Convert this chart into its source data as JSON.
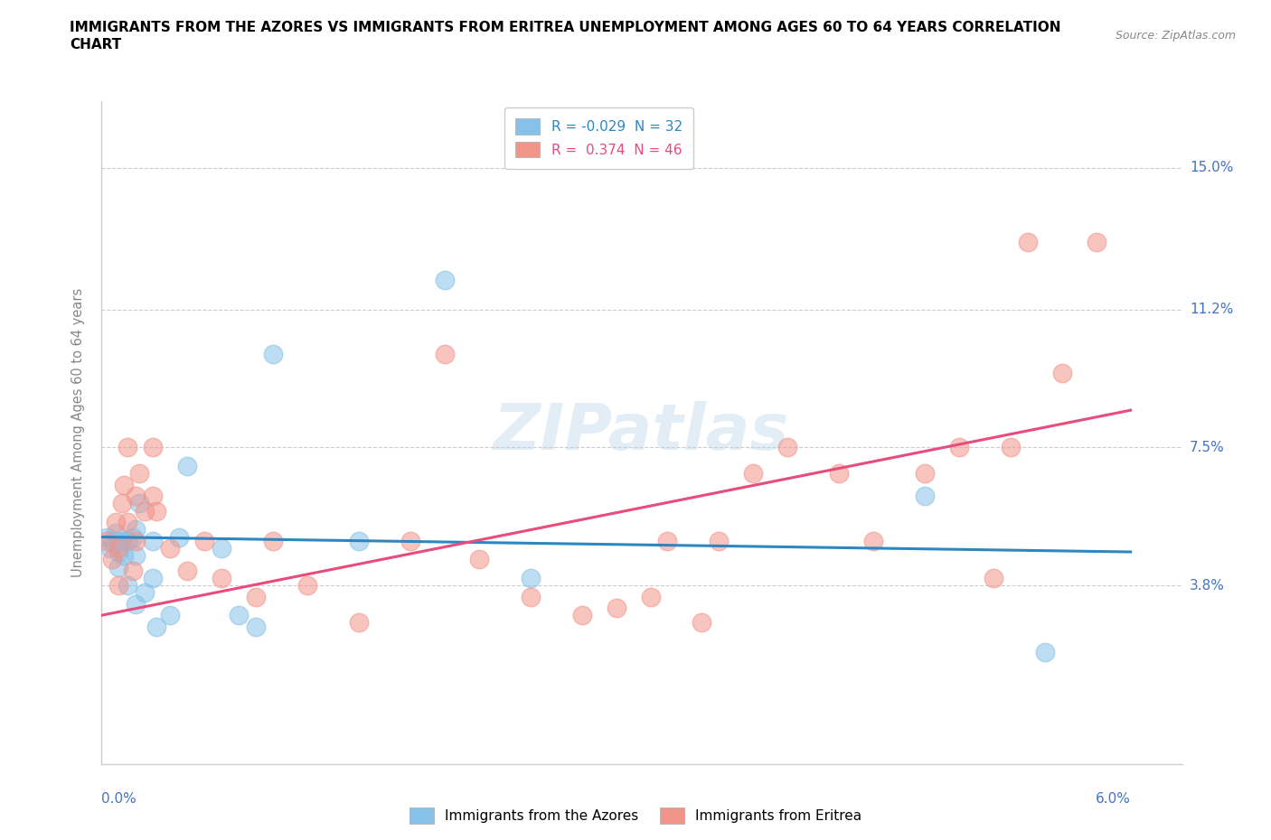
{
  "title_line1": "IMMIGRANTS FROM THE AZORES VS IMMIGRANTS FROM ERITREA UNEMPLOYMENT AMONG AGES 60 TO 64 YEARS CORRELATION",
  "title_line2": "CHART",
  "source": "Source: ZipAtlas.com",
  "ylabel_label": "Unemployment Among Ages 60 to 64 years",
  "xlim": [
    0.0,
    0.063
  ],
  "ylim": [
    -0.01,
    0.168
  ],
  "ytick_vals": [
    0.0,
    0.038,
    0.075,
    0.112,
    0.15
  ],
  "ytick_labels": [
    "",
    "3.8%",
    "7.5%",
    "11.2%",
    "15.0%"
  ],
  "azores_color": "#85C1E9",
  "eritrea_color": "#F1948A",
  "trend_azores_color": "#2E86C1",
  "trend_eritrea_color": "#E74C7C",
  "watermark": "ZIPatlas",
  "azores_R": -0.029,
  "azores_N": 32,
  "eritrea_R": 0.374,
  "eritrea_N": 46,
  "azores_x": [
    0.0003,
    0.0005,
    0.0006,
    0.0008,
    0.001,
    0.001,
    0.001,
    0.0012,
    0.0013,
    0.0015,
    0.0015,
    0.0018,
    0.002,
    0.002,
    0.002,
    0.0022,
    0.0025,
    0.003,
    0.003,
    0.0032,
    0.004,
    0.0045,
    0.005,
    0.007,
    0.008,
    0.009,
    0.01,
    0.015,
    0.02,
    0.025,
    0.048,
    0.055
  ],
  "azores_y": [
    0.051,
    0.048,
    0.05,
    0.052,
    0.05,
    0.047,
    0.043,
    0.05,
    0.046,
    0.05,
    0.038,
    0.051,
    0.053,
    0.046,
    0.033,
    0.06,
    0.036,
    0.05,
    0.04,
    0.027,
    0.03,
    0.051,
    0.07,
    0.048,
    0.03,
    0.027,
    0.1,
    0.05,
    0.12,
    0.04,
    0.062,
    0.02
  ],
  "eritrea_x": [
    0.0003,
    0.0006,
    0.0008,
    0.001,
    0.001,
    0.0012,
    0.0013,
    0.0015,
    0.0015,
    0.0018,
    0.002,
    0.002,
    0.0022,
    0.0025,
    0.003,
    0.003,
    0.0032,
    0.004,
    0.005,
    0.006,
    0.007,
    0.009,
    0.01,
    0.012,
    0.015,
    0.018,
    0.02,
    0.022,
    0.025,
    0.028,
    0.03,
    0.032,
    0.033,
    0.035,
    0.036,
    0.038,
    0.04,
    0.043,
    0.045,
    0.048,
    0.05,
    0.052,
    0.053,
    0.054,
    0.056,
    0.058
  ],
  "eritrea_y": [
    0.05,
    0.045,
    0.055,
    0.048,
    0.038,
    0.06,
    0.065,
    0.055,
    0.075,
    0.042,
    0.05,
    0.062,
    0.068,
    0.058,
    0.075,
    0.062,
    0.058,
    0.048,
    0.042,
    0.05,
    0.04,
    0.035,
    0.05,
    0.038,
    0.028,
    0.05,
    0.1,
    0.045,
    0.035,
    0.03,
    0.032,
    0.035,
    0.05,
    0.028,
    0.05,
    0.068,
    0.075,
    0.068,
    0.05,
    0.068,
    0.075,
    0.04,
    0.075,
    0.13,
    0.095,
    0.13
  ],
  "az_trend_x0": 0.0,
  "az_trend_y0": 0.051,
  "az_trend_x1": 0.06,
  "az_trend_y1": 0.047,
  "er_trend_x0": 0.0,
  "er_trend_y0": 0.03,
  "er_trend_x1": 0.06,
  "er_trend_y1": 0.085
}
